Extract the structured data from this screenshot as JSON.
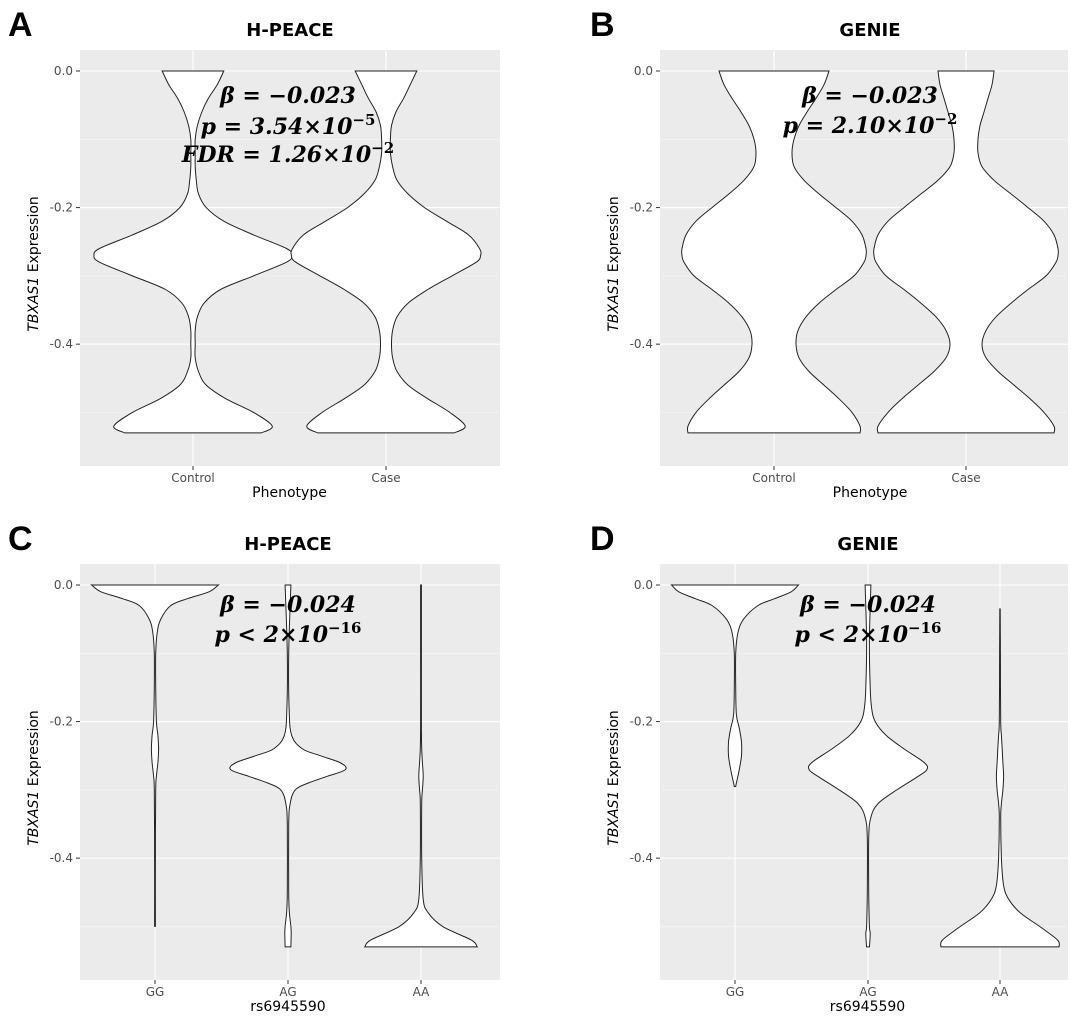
{
  "chart_data": [
    {
      "panel": "A",
      "type": "violin",
      "title": "H-PEACE",
      "xlabel": "Phenotype",
      "ylabel_gene": "TBXAS1",
      "ylabel_rest": " Expression",
      "yticks": [
        0.0,
        -0.2,
        -0.4
      ],
      "ytick_labels": [
        "0.0",
        "-0.2",
        "-0.4"
      ],
      "ylim": [
        -0.555,
        0.0
      ],
      "categories": [
        "Control",
        "Case"
      ],
      "annotation": [
        {
          "lhs": "β = −0.023"
        },
        {
          "lhs": "p = 3.54×10",
          "sup": "−5"
        },
        {
          "lhs": "FDR = 1.26×10",
          "sup": "−2"
        }
      ],
      "violins": [
        {
          "category": "Control",
          "ymin": -0.53,
          "ymax": 0.0,
          "density": [
            [
              0.0,
              0.28
            ],
            [
              -0.02,
              0.22
            ],
            [
              -0.04,
              0.14
            ],
            [
              -0.06,
              0.08
            ],
            [
              -0.08,
              0.04
            ],
            [
              -0.1,
              0.02
            ],
            [
              -0.12,
              0.02
            ],
            [
              -0.14,
              0.02
            ],
            [
              -0.16,
              0.03
            ],
            [
              -0.18,
              0.05
            ],
            [
              -0.2,
              0.12
            ],
            [
              -0.22,
              0.28
            ],
            [
              -0.24,
              0.55
            ],
            [
              -0.26,
              0.85
            ],
            [
              -0.27,
              0.9
            ],
            [
              -0.28,
              0.85
            ],
            [
              -0.3,
              0.55
            ],
            [
              -0.32,
              0.25
            ],
            [
              -0.34,
              0.1
            ],
            [
              -0.36,
              0.04
            ],
            [
              -0.38,
              0.02
            ],
            [
              -0.4,
              0.02
            ],
            [
              -0.42,
              0.02
            ],
            [
              -0.44,
              0.05
            ],
            [
              -0.46,
              0.12
            ],
            [
              -0.48,
              0.3
            ],
            [
              -0.5,
              0.55
            ],
            [
              -0.52,
              0.72
            ],
            [
              -0.53,
              0.62
            ]
          ]
        },
        {
          "category": "Case",
          "ymin": -0.53,
          "ymax": 0.0,
          "density": [
            [
              0.0,
              0.28
            ],
            [
              -0.02,
              0.22
            ],
            [
              -0.04,
              0.16
            ],
            [
              -0.06,
              0.09
            ],
            [
              -0.08,
              0.05
            ],
            [
              -0.1,
              0.04
            ],
            [
              -0.12,
              0.04
            ],
            [
              -0.14,
              0.06
            ],
            [
              -0.16,
              0.1
            ],
            [
              -0.18,
              0.2
            ],
            [
              -0.2,
              0.35
            ],
            [
              -0.22,
              0.55
            ],
            [
              -0.24,
              0.75
            ],
            [
              -0.26,
              0.85
            ],
            [
              -0.27,
              0.86
            ],
            [
              -0.28,
              0.82
            ],
            [
              -0.3,
              0.6
            ],
            [
              -0.32,
              0.38
            ],
            [
              -0.34,
              0.2
            ],
            [
              -0.36,
              0.1
            ],
            [
              -0.38,
              0.06
            ],
            [
              -0.4,
              0.05
            ],
            [
              -0.42,
              0.06
            ],
            [
              -0.44,
              0.1
            ],
            [
              -0.46,
              0.2
            ],
            [
              -0.48,
              0.38
            ],
            [
              -0.5,
              0.58
            ],
            [
              -0.52,
              0.72
            ],
            [
              -0.53,
              0.62
            ]
          ]
        }
      ]
    },
    {
      "panel": "B",
      "type": "violin",
      "title": "GENIE",
      "xlabel": "Phenotype",
      "ylabel_gene": "TBXAS1",
      "ylabel_rest": " Expression",
      "yticks": [
        0.0,
        -0.2,
        -0.4
      ],
      "ytick_labels": [
        "0.0",
        "-0.2",
        "-0.4"
      ],
      "ylim": [
        -0.555,
        0.0
      ],
      "categories": [
        "Control",
        "Case"
      ],
      "annotation": [
        {
          "lhs": "β = −0.023"
        },
        {
          "lhs": "p = 2.10×10",
          "sup": "−2"
        }
      ],
      "violins": [
        {
          "category": "Control",
          "ymin": -0.53,
          "ymax": 0.0,
          "density": [
            [
              0.0,
              0.55
            ],
            [
              -0.02,
              0.5
            ],
            [
              -0.04,
              0.42
            ],
            [
              -0.06,
              0.33
            ],
            [
              -0.08,
              0.25
            ],
            [
              -0.1,
              0.2
            ],
            [
              -0.12,
              0.18
            ],
            [
              -0.14,
              0.2
            ],
            [
              -0.16,
              0.3
            ],
            [
              -0.18,
              0.45
            ],
            [
              -0.2,
              0.62
            ],
            [
              -0.22,
              0.78
            ],
            [
              -0.24,
              0.88
            ],
            [
              -0.26,
              0.92
            ],
            [
              -0.27,
              0.92
            ],
            [
              -0.28,
              0.9
            ],
            [
              -0.3,
              0.8
            ],
            [
              -0.32,
              0.62
            ],
            [
              -0.34,
              0.45
            ],
            [
              -0.36,
              0.32
            ],
            [
              -0.38,
              0.24
            ],
            [
              -0.4,
              0.22
            ],
            [
              -0.42,
              0.25
            ],
            [
              -0.44,
              0.35
            ],
            [
              -0.46,
              0.5
            ],
            [
              -0.48,
              0.65
            ],
            [
              -0.5,
              0.78
            ],
            [
              -0.52,
              0.86
            ],
            [
              -0.53,
              0.86
            ]
          ]
        },
        {
          "category": "Case",
          "ymin": -0.53,
          "ymax": 0.0,
          "density": [
            [
              0.0,
              0.28
            ],
            [
              -0.02,
              0.26
            ],
            [
              -0.04,
              0.22
            ],
            [
              -0.06,
              0.18
            ],
            [
              -0.08,
              0.14
            ],
            [
              -0.1,
              0.12
            ],
            [
              -0.12,
              0.12
            ],
            [
              -0.14,
              0.16
            ],
            [
              -0.16,
              0.28
            ],
            [
              -0.18,
              0.45
            ],
            [
              -0.2,
              0.62
            ],
            [
              -0.22,
              0.78
            ],
            [
              -0.24,
              0.88
            ],
            [
              -0.26,
              0.92
            ],
            [
              -0.27,
              0.92
            ],
            [
              -0.28,
              0.9
            ],
            [
              -0.3,
              0.8
            ],
            [
              -0.32,
              0.62
            ],
            [
              -0.34,
              0.45
            ],
            [
              -0.36,
              0.3
            ],
            [
              -0.38,
              0.2
            ],
            [
              -0.4,
              0.16
            ],
            [
              -0.42,
              0.2
            ],
            [
              -0.44,
              0.32
            ],
            [
              -0.46,
              0.48
            ],
            [
              -0.48,
              0.64
            ],
            [
              -0.5,
              0.78
            ],
            [
              -0.52,
              0.88
            ],
            [
              -0.53,
              0.88
            ]
          ]
        }
      ]
    },
    {
      "panel": "C",
      "type": "violin",
      "title": "H-PEACE",
      "xlabel": "rs6945590",
      "ylabel_gene": "TBXAS1",
      "ylabel_rest": " Expression",
      "yticks": [
        0.0,
        -0.2,
        -0.4
      ],
      "ytick_labels": [
        "0.0",
        "-0.2",
        "-0.4"
      ],
      "ylim": [
        -0.555,
        0.0
      ],
      "categories": [
        "GG",
        "AG",
        "AA"
      ],
      "annotation": [
        {
          "lhs": "β = −0.024"
        },
        {
          "lhs": "p < 2×10",
          "sup": "−16"
        }
      ],
      "violins": [
        {
          "category": "GG",
          "ymin": -0.5,
          "ymax": 0.0,
          "density": [
            [
              0.0,
              0.88
            ],
            [
              -0.01,
              0.75
            ],
            [
              -0.02,
              0.45
            ],
            [
              -0.03,
              0.22
            ],
            [
              -0.05,
              0.08
            ],
            [
              -0.07,
              0.03
            ],
            [
              -0.1,
              0.01
            ],
            [
              -0.15,
              0.01
            ],
            [
              -0.2,
              0.02
            ],
            [
              -0.22,
              0.04
            ],
            [
              -0.24,
              0.05
            ],
            [
              -0.26,
              0.04
            ],
            [
              -0.28,
              0.02
            ],
            [
              -0.3,
              0.01
            ],
            [
              -0.4,
              0.005
            ],
            [
              -0.5,
              0.005
            ]
          ]
        },
        {
          "category": "AG",
          "ymin": -0.53,
          "ymax": 0.0,
          "density": [
            [
              0.0,
              0.04
            ],
            [
              -0.1,
              0.01
            ],
            [
              -0.18,
              0.015
            ],
            [
              -0.22,
              0.05
            ],
            [
              -0.24,
              0.2
            ],
            [
              -0.25,
              0.45
            ],
            [
              -0.26,
              0.72
            ],
            [
              -0.27,
              0.8
            ],
            [
              -0.28,
              0.55
            ],
            [
              -0.29,
              0.28
            ],
            [
              -0.3,
              0.1
            ],
            [
              -0.32,
              0.03
            ],
            [
              -0.35,
              0.01
            ],
            [
              -0.45,
              0.01
            ],
            [
              -0.48,
              0.02
            ],
            [
              -0.5,
              0.04
            ],
            [
              -0.51,
              0.045
            ],
            [
              -0.53,
              0.04
            ]
          ]
        },
        {
          "category": "AA",
          "ymin": -0.53,
          "ymax": 0.0,
          "density": [
            [
              0.0,
              0.005
            ],
            [
              -0.1,
              0.005
            ],
            [
              -0.2,
              0.005
            ],
            [
              -0.24,
              0.01
            ],
            [
              -0.26,
              0.02
            ],
            [
              -0.28,
              0.03
            ],
            [
              -0.3,
              0.02
            ],
            [
              -0.32,
              0.01
            ],
            [
              -0.4,
              0.01
            ],
            [
              -0.46,
              0.03
            ],
            [
              -0.48,
              0.1
            ],
            [
              -0.5,
              0.3
            ],
            [
              -0.52,
              0.7
            ],
            [
              -0.53,
              0.78
            ]
          ]
        }
      ]
    },
    {
      "panel": "D",
      "type": "violin",
      "title": "GENIE",
      "xlabel": "rs6945590",
      "ylabel_gene": "TBXAS1",
      "ylabel_rest": " Expression",
      "yticks": [
        0.0,
        -0.2,
        -0.4
      ],
      "ytick_labels": [
        "0.0",
        "-0.2",
        "-0.4"
      ],
      "ylim": [
        -0.555,
        0.0
      ],
      "categories": [
        "GG",
        "AG",
        "AA"
      ],
      "annotation": [
        {
          "lhs": "β = −0.024"
        },
        {
          "lhs": "p < 2×10",
          "sup": "−16"
        }
      ],
      "violins": [
        {
          "category": "GG",
          "ymin": -0.295,
          "ymax": 0.0,
          "density": [
            [
              0.0,
              0.88
            ],
            [
              -0.01,
              0.78
            ],
            [
              -0.02,
              0.55
            ],
            [
              -0.03,
              0.32
            ],
            [
              -0.05,
              0.12
            ],
            [
              -0.07,
              0.04
            ],
            [
              -0.1,
              0.01
            ],
            [
              -0.15,
              0.01
            ],
            [
              -0.19,
              0.02
            ],
            [
              -0.21,
              0.06
            ],
            [
              -0.23,
              0.09
            ],
            [
              -0.25,
              0.09
            ],
            [
              -0.27,
              0.06
            ],
            [
              -0.29,
              0.02
            ],
            [
              -0.295,
              0.01
            ]
          ]
        },
        {
          "category": "AG",
          "ymin": -0.53,
          "ymax": 0.0,
          "density": [
            [
              0.0,
              0.04
            ],
            [
              -0.08,
              0.02
            ],
            [
              -0.15,
              0.03
            ],
            [
              -0.18,
              0.05
            ],
            [
              -0.2,
              0.1
            ],
            [
              -0.22,
              0.25
            ],
            [
              -0.24,
              0.5
            ],
            [
              -0.26,
              0.78
            ],
            [
              -0.27,
              0.82
            ],
            [
              -0.28,
              0.7
            ],
            [
              -0.3,
              0.4
            ],
            [
              -0.32,
              0.14
            ],
            [
              -0.34,
              0.04
            ],
            [
              -0.37,
              0.01
            ],
            [
              -0.45,
              0.01
            ],
            [
              -0.5,
              0.02
            ],
            [
              -0.51,
              0.03
            ],
            [
              -0.53,
              0.02
            ]
          ]
        },
        {
          "category": "AA",
          "ymin": -0.53,
          "ymax": -0.035,
          "density": [
            [
              -0.035,
              0.003
            ],
            [
              -0.1,
              0.005
            ],
            [
              -0.2,
              0.01
            ],
            [
              -0.22,
              0.02
            ],
            [
              -0.24,
              0.03
            ],
            [
              -0.26,
              0.04
            ],
            [
              -0.28,
              0.05
            ],
            [
              -0.3,
              0.04
            ],
            [
              -0.32,
              0.02
            ],
            [
              -0.34,
              0.01
            ],
            [
              -0.4,
              0.02
            ],
            [
              -0.44,
              0.05
            ],
            [
              -0.46,
              0.12
            ],
            [
              -0.48,
              0.28
            ],
            [
              -0.5,
              0.55
            ],
            [
              -0.52,
              0.8
            ],
            [
              -0.53,
              0.82
            ]
          ]
        }
      ]
    }
  ]
}
